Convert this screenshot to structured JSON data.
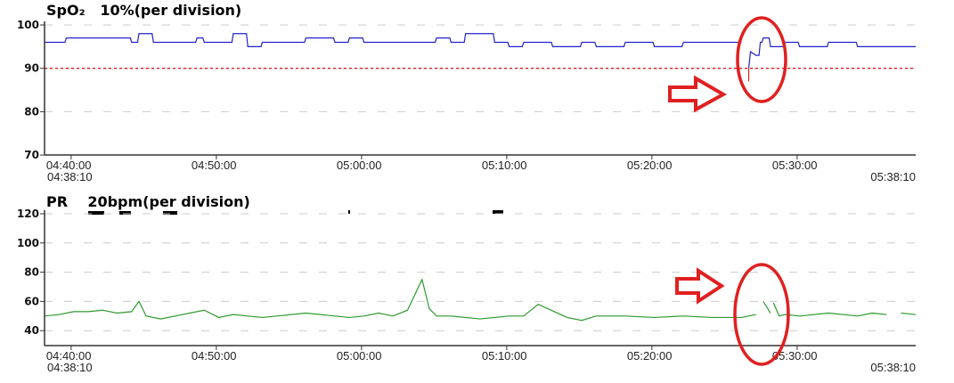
{
  "chart_data": [
    {
      "type": "line",
      "title": "SpO₂   10%(per division)",
      "parameter": "SpO₂",
      "scale_note": "10%(per division)",
      "xlabel": "",
      "ylabel": "",
      "ylim": [
        70,
        100
      ],
      "y_ticks": [
        100,
        90,
        80,
        70
      ],
      "x_ticks": [
        "04:40:00",
        "04:50:00",
        "05:00:00",
        "05:10:00",
        "05:20:00",
        "05:30:00"
      ],
      "x_start": "04:38:10",
      "x_end": "05:38:10",
      "grid": "dashed horizontal",
      "threshold_line": {
        "value": 90,
        "color": "#e02020",
        "style": "dotted"
      },
      "line_color": "#2222cc",
      "alarm_segment_color": "#e02020",
      "series": [
        {
          "name": "SpO₂",
          "x_minutes": [
            0,
            1,
            1.5,
            5,
            6,
            6.5,
            7.5,
            9.5,
            10.5,
            11,
            12.5,
            13,
            14,
            15,
            15.5,
            18,
            20,
            21,
            22,
            23,
            27,
            28,
            29,
            31,
            32,
            33,
            35,
            37,
            38,
            40,
            42,
            44,
            46,
            48,
            48.5,
            49.0,
            49.3,
            49.5,
            50,
            51,
            52,
            54,
            56,
            58,
            60
          ],
          "values": [
            96,
            96,
            97,
            97,
            96,
            98,
            96,
            96,
            97,
            96,
            96,
            98,
            95,
            96,
            96,
            97,
            96,
            97,
            96,
            96,
            97,
            96,
            98,
            96,
            95,
            96,
            95,
            96,
            95,
            96,
            95,
            96,
            96,
            96,
            87,
            93,
            96,
            97,
            95,
            96,
            95,
            96,
            95,
            95,
            95
          ]
        }
      ],
      "annotations": [
        {
          "type": "arrow",
          "direction": "right",
          "color": "#e02020"
        },
        {
          "type": "ellipse",
          "color": "#e02020",
          "note": "dip to ~87% around 05:27"
        }
      ]
    },
    {
      "type": "line",
      "title": "PR   20bpm(per division)",
      "parameter": "PR",
      "scale_note": "20bpm(per division)",
      "xlabel": "",
      "ylabel": "",
      "ylim": [
        30,
        120
      ],
      "y_ticks": [
        120,
        100,
        80,
        60,
        40
      ],
      "x_ticks": [
        "04:40:00",
        "04:50:00",
        "05:00:00",
        "05:10:00",
        "05:20:00",
        "05:30:00"
      ],
      "x_start": "04:38:10",
      "x_end": "05:38:10",
      "grid": "dashed horizontal",
      "line_color": "#2e9a2e",
      "series": [
        {
          "name": "PR",
          "x_minutes": [
            0,
            1,
            2,
            3,
            4,
            5,
            6,
            6.5,
            7,
            8,
            9,
            10,
            11,
            12,
            13,
            14,
            15,
            16,
            18,
            20,
            21,
            22,
            23,
            24,
            25,
            26,
            26.5,
            27,
            28,
            30,
            31,
            32,
            33,
            34,
            36,
            37,
            38,
            40,
            42,
            44,
            46,
            48,
            48.5,
            49,
            49.5,
            50,
            50.2,
            50.6,
            51,
            52,
            54,
            56,
            57,
            58,
            59,
            60
          ],
          "values": [
            50,
            51,
            53,
            53,
            54,
            52,
            53,
            60,
            50,
            48,
            50,
            52,
            54,
            49,
            51,
            50,
            49,
            50,
            52,
            50,
            49,
            50,
            52,
            50,
            54,
            75,
            55,
            50,
            50,
            48,
            49,
            50,
            50,
            58,
            49,
            47,
            50,
            50,
            49,
            50,
            49,
            49,
            50,
            51,
            60,
            52,
            59,
            50,
            51,
            50,
            52,
            50,
            52,
            51,
            52,
            51
          ]
        }
      ],
      "annotations": [
        {
          "type": "arrow",
          "direction": "right",
          "color": "#e02020"
        },
        {
          "type": "ellipse",
          "color": "#e02020",
          "note": "irregular PR around 05:27-05:28"
        }
      ]
    }
  ],
  "spo2": {
    "param": "SpO₂",
    "scale": "10%(per division)",
    "y_labels": [
      "100",
      "90",
      "80",
      "70"
    ],
    "x_labels": [
      "04:40:00",
      "04:50:00",
      "05:00:00",
      "05:10:00",
      "05:20:00",
      "05:30:00"
    ],
    "start_time": "04:38:10",
    "end_time": "05:38:10"
  },
  "pr": {
    "param": "PR",
    "scale": "20bpm(per division)",
    "y_labels": [
      "120",
      "100",
      "80",
      "60",
      "40"
    ],
    "x_labels": [
      "04:40:00",
      "04:50:00",
      "05:00:00",
      "05:10:00",
      "05:20:00",
      "05:30:00"
    ],
    "start_time": "04:38:10",
    "end_time": "05:38:10"
  },
  "colors": {
    "spo2_line": "#2222cc",
    "pr_line": "#2e9a2e",
    "alarm": "#e02020",
    "axis": "#333333",
    "grid": "#cccccc"
  }
}
